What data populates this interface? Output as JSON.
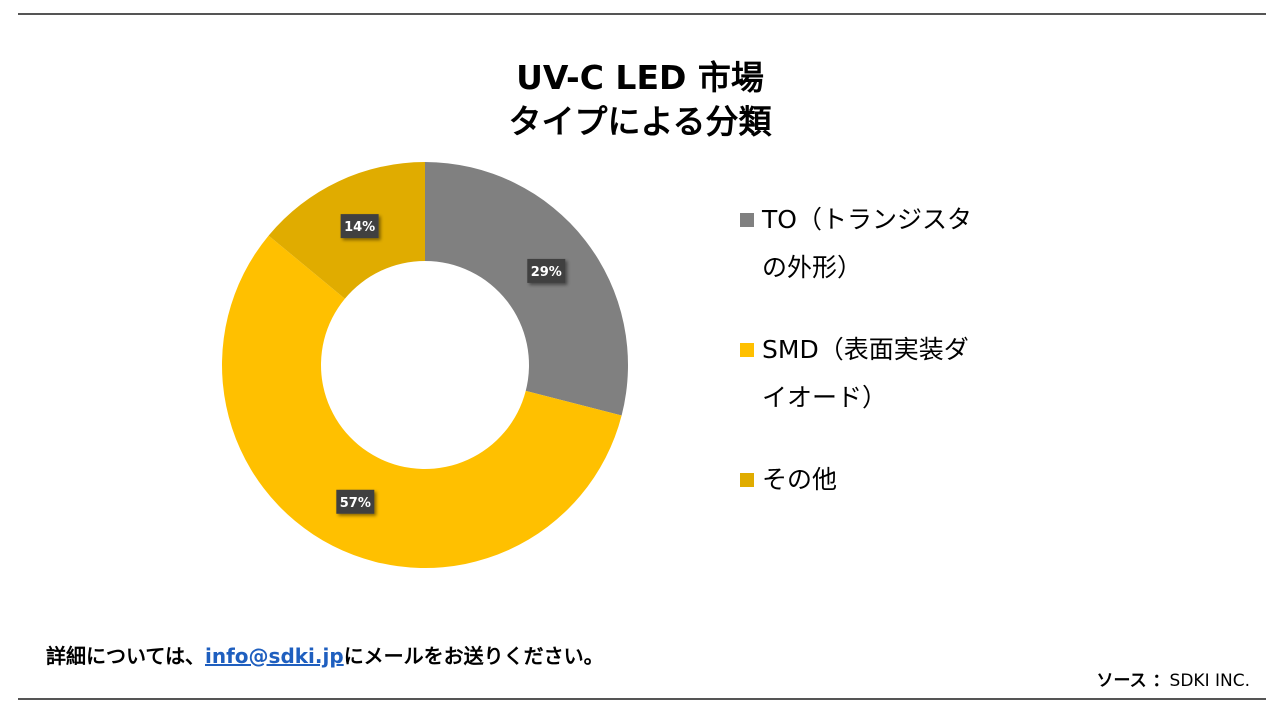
{
  "title_line1": "UV-C LED 市場",
  "title_line2": "タイプによる分類",
  "chart_data": {
    "type": "pie",
    "variant": "donut",
    "title": "UV-C LED 市場 タイプによる分類",
    "categories": [
      "TO（トランジスタの外形）",
      "SMD（表面実装ダイオード）",
      "その他"
    ],
    "values": [
      29,
      57,
      14
    ],
    "labels": [
      "29%",
      "57%",
      "14%"
    ],
    "colors": [
      "#808080",
      "#FFC000",
      "#E0AC00"
    ],
    "legend_position": "right"
  },
  "legend": {
    "items": [
      {
        "line1": "TO（トランジスタ",
        "line2": "の外形）"
      },
      {
        "line1": "SMD（表面実装ダ",
        "line2": "イオード）"
      },
      {
        "line1": "その他",
        "line2": ""
      }
    ]
  },
  "footer": {
    "prefix": "詳細については、",
    "email": "info@sdki.jp",
    "suffix": "にメールをお送りください。",
    "source_label": "ソース ：",
    "source_value": "SDKI INC."
  }
}
